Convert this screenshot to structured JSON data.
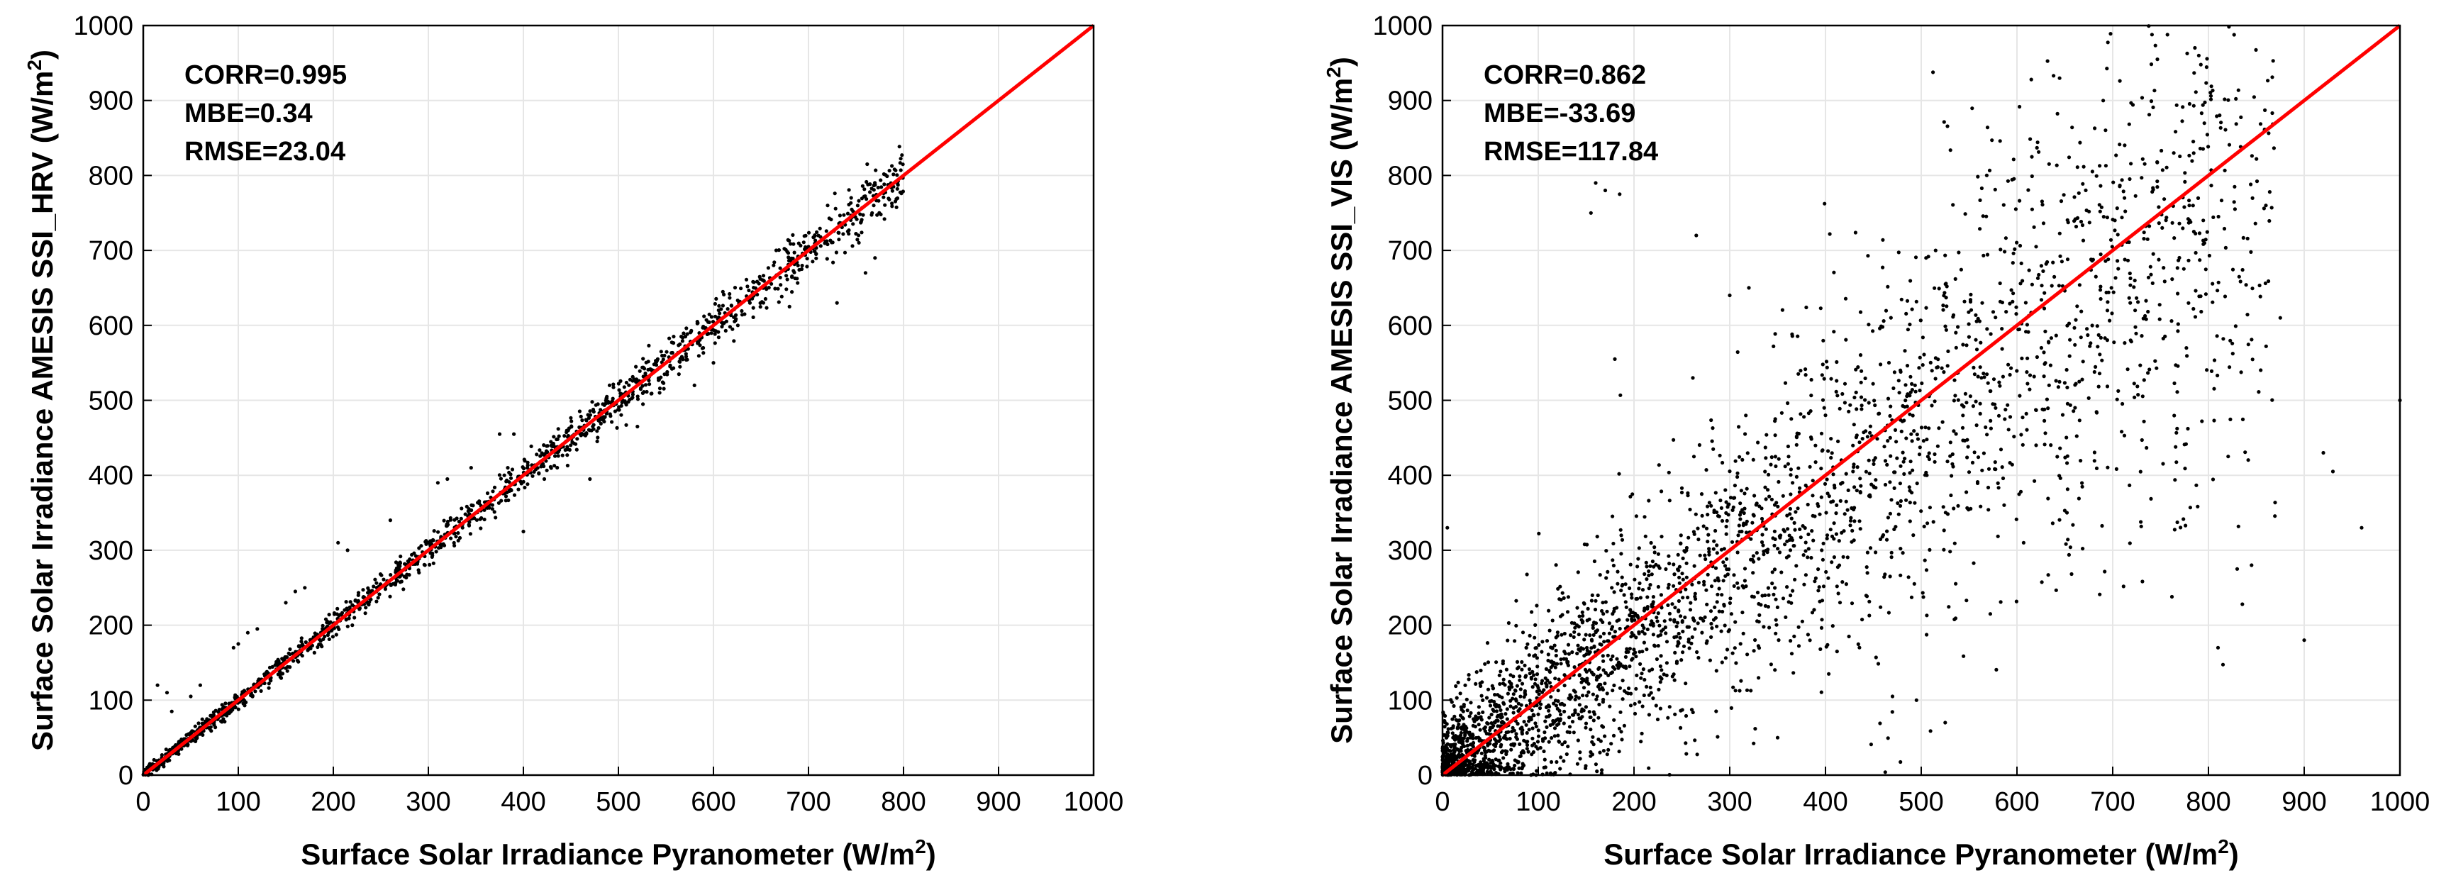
{
  "colors": {
    "points": "#000000",
    "fit_line": "#ff0000",
    "grid": "#e6e6e6",
    "axes": "#000000",
    "background": "#ffffff"
  },
  "chart_data": [
    {
      "type": "scatter",
      "xlabel": "Surface Solar Irradiance Pyranometer (W/m²)",
      "xlabel_main": "Surface Solar Irradiance Pyranometer (W/m",
      "xlabel_sup": "2",
      "xlabel_tail": ")",
      "ylabel": "Surface Solar Irradiance AMESIS SSI_HRV (W/m²)",
      "ylabel_main": "Surface Solar Irradiance AMESIS SSI_HRV (W/m",
      "ylabel_sup": "2",
      "ylabel_tail": ")",
      "xlim": [
        0,
        1000
      ],
      "ylim": [
        0,
        1000
      ],
      "xticks": [
        0,
        100,
        200,
        300,
        400,
        500,
        600,
        700,
        800,
        900,
        1000
      ],
      "yticks": [
        0,
        100,
        200,
        300,
        400,
        500,
        600,
        700,
        800,
        900,
        1000
      ],
      "xtick_labels": [
        "0",
        "100",
        "200",
        "300",
        "400",
        "500",
        "600",
        "700",
        "800",
        "900",
        "1000"
      ],
      "ytick_labels": [
        "0",
        "100",
        "200",
        "300",
        "400",
        "500",
        "600",
        "700",
        "800",
        "900",
        "1000"
      ],
      "grid": true,
      "stats": {
        "corr": "CORR=0.995",
        "mbe": "MBE=0.34",
        "rmse": "RMSE=23.04"
      },
      "reference_line": {
        "x": [
          0,
          1000
        ],
        "y": [
          0,
          1000
        ]
      },
      "point_cloud": {
        "description_range_x": [
          0,
          800
        ],
        "bias": 0,
        "spread_base": 4,
        "spread_slope": 0.02,
        "count": 1500
      },
      "outliers": [
        {
          "x": 15,
          "y": 120
        },
        {
          "x": 25,
          "y": 110
        },
        {
          "x": 30,
          "y": 85
        },
        {
          "x": 50,
          "y": 105
        },
        {
          "x": 60,
          "y": 120
        },
        {
          "x": 95,
          "y": 170
        },
        {
          "x": 100,
          "y": 175
        },
        {
          "x": 110,
          "y": 190
        },
        {
          "x": 120,
          "y": 195
        },
        {
          "x": 150,
          "y": 230
        },
        {
          "x": 160,
          "y": 245
        },
        {
          "x": 170,
          "y": 250
        },
        {
          "x": 205,
          "y": 310
        },
        {
          "x": 215,
          "y": 300
        },
        {
          "x": 220,
          "y": 200
        },
        {
          "x": 260,
          "y": 340
        },
        {
          "x": 310,
          "y": 390
        },
        {
          "x": 320,
          "y": 395
        },
        {
          "x": 345,
          "y": 410
        },
        {
          "x": 375,
          "y": 455
        },
        {
          "x": 390,
          "y": 455
        },
        {
          "x": 400,
          "y": 325
        },
        {
          "x": 445,
          "y": 445
        },
        {
          "x": 470,
          "y": 395
        },
        {
          "x": 520,
          "y": 465
        },
        {
          "x": 545,
          "y": 565
        },
        {
          "x": 580,
          "y": 520
        },
        {
          "x": 600,
          "y": 550
        },
        {
          "x": 680,
          "y": 625
        },
        {
          "x": 700,
          "y": 705
        },
        {
          "x": 730,
          "y": 630
        },
        {
          "x": 760,
          "y": 670
        },
        {
          "x": 770,
          "y": 690
        }
      ]
    },
    {
      "type": "scatter",
      "xlabel": "Surface Solar Irradiance Pyranometer (W/m²)",
      "xlabel_main": "Surface Solar Irradiance Pyranometer (W/m",
      "xlabel_sup": "2",
      "xlabel_tail": ")",
      "ylabel": "Surface Solar Irradiance AMESIS SSI_VIS (W/m²)",
      "ylabel_main": "Surface Solar Irradiance AMESIS SSI_VIS (W/m",
      "ylabel_sup": "2",
      "ylabel_tail": ")",
      "xlim": [
        0,
        1000
      ],
      "ylim": [
        0,
        1000
      ],
      "xticks": [
        0,
        100,
        200,
        300,
        400,
        500,
        600,
        700,
        800,
        900,
        1000
      ],
      "yticks": [
        0,
        100,
        200,
        300,
        400,
        500,
        600,
        700,
        800,
        900,
        1000
      ],
      "xtick_labels": [
        "0",
        "100",
        "200",
        "300",
        "400",
        "500",
        "600",
        "700",
        "800",
        "900",
        "1000"
      ],
      "ytick_labels": [
        "0",
        "100",
        "200",
        "300",
        "400",
        "500",
        "600",
        "700",
        "800",
        "900",
        "1000"
      ],
      "grid": true,
      "stats": {
        "corr": "CORR=0.862",
        "mbe": "MBE=-33.69",
        "rmse": "RMSE=117.84"
      },
      "reference_line": {
        "x": [
          0,
          1000
        ],
        "y": [
          0,
          1000
        ]
      },
      "point_cloud": {
        "description_range_x": [
          0,
          870
        ],
        "bias": -33.69,
        "spread_base": 35,
        "spread_slope": 0.2,
        "count": 3200
      },
      "outliers": [
        {
          "x": 160,
          "y": 790
        },
        {
          "x": 170,
          "y": 780
        },
        {
          "x": 155,
          "y": 750
        },
        {
          "x": 185,
          "y": 775
        },
        {
          "x": 180,
          "y": 555
        },
        {
          "x": 265,
          "y": 720
        },
        {
          "x": 505,
          "y": 690
        },
        {
          "x": 515,
          "y": 700
        },
        {
          "x": 300,
          "y": 640
        },
        {
          "x": 320,
          "y": 650
        },
        {
          "x": 495,
          "y": 100
        },
        {
          "x": 525,
          "y": 70
        },
        {
          "x": 470,
          "y": 105
        },
        {
          "x": 900,
          "y": 180
        },
        {
          "x": 930,
          "y": 405
        },
        {
          "x": 960,
          "y": 330
        },
        {
          "x": 1000,
          "y": 500
        },
        {
          "x": 920,
          "y": 430
        },
        {
          "x": 860,
          "y": 760
        },
        {
          "x": 810,
          "y": 170
        },
        {
          "x": 830,
          "y": 275
        },
        {
          "x": 845,
          "y": 280
        },
        {
          "x": 5,
          "y": 330
        },
        {
          "x": 350,
          "y": 50
        },
        {
          "x": 620,
          "y": 705
        },
        {
          "x": 780,
          "y": 760
        },
        {
          "x": 620,
          "y": 440
        },
        {
          "x": 875,
          "y": 610
        }
      ]
    }
  ]
}
